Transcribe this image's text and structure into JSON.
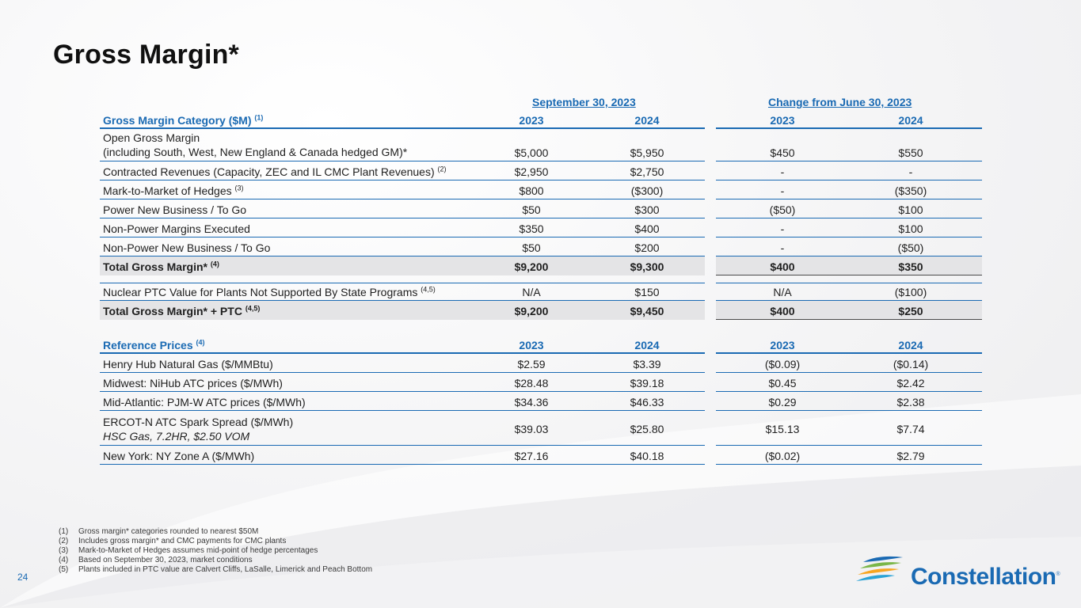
{
  "page": {
    "title": "Gross Margin*",
    "page_number": "24"
  },
  "group_headers": {
    "left": "September 30, 2023",
    "right": "Change from June 30, 2023"
  },
  "margin_table": {
    "header": {
      "label": "Gross Margin Category ($M)",
      "sup": "(1)",
      "c1": "2023",
      "c2": "2024",
      "c3": "2023",
      "c4": "2024"
    },
    "rows": [
      {
        "line1": "Open Gross Margin",
        "line2": "(including South, West, New England & Canada hedged GM)*",
        "c1": "$5,000",
        "c2": "$5,950",
        "c3": "$450",
        "c4": "$550"
      },
      {
        "label": "Contracted Revenues (Capacity, ZEC and IL CMC Plant Revenues)",
        "sup": "(2)",
        "c1": "$2,950",
        "c2": "$2,750",
        "c3": "-",
        "c4": "-"
      },
      {
        "label": "Mark-to-Market of Hedges",
        "sup": "(3)",
        "c1": "$800",
        "c2": "($300)",
        "c3": "-",
        "c4": "($350)"
      },
      {
        "label": "Power New Business / To Go",
        "c1": "$50",
        "c2": "$300",
        "c3": "($50)",
        "c4": "$100"
      },
      {
        "label": "Non-Power Margins Executed",
        "c1": "$350",
        "c2": "$400",
        "c3": "-",
        "c4": "$100"
      },
      {
        "label": "Non-Power New Business / To Go",
        "c1": "$50",
        "c2": "$200",
        "c3": "-",
        "c4": "($50)"
      }
    ],
    "total": {
      "label": "Total Gross Margin*",
      "sup": "(4)",
      "c1": "$9,200",
      "c2": "$9,300",
      "c3": "$400",
      "c4": "$350"
    },
    "ptc": {
      "label": "Nuclear PTC Value for Plants Not Supported By State Programs",
      "sup": "(4,5)",
      "c1": "N/A",
      "c2": "$150",
      "c3": "N/A",
      "c4": "($100)"
    },
    "total_ptc": {
      "label": "Total Gross Margin* + PTC",
      "sup": "(4,5)",
      "c1": "$9,200",
      "c2": "$9,450",
      "c3": "$400",
      "c4": "$250"
    }
  },
  "reference_table": {
    "header": {
      "label": "Reference Prices",
      "sup": "(4)",
      "c1": "2023",
      "c2": "2024",
      "c3": "2023",
      "c4": "2024"
    },
    "rows": [
      {
        "label": "Henry Hub Natural Gas ($/MMBtu)",
        "c1": "$2.59",
        "c2": "$3.39",
        "c3": "($0.09)",
        "c4": "($0.14)"
      },
      {
        "label": "Midwest: NiHub ATC prices ($/MWh)",
        "c1": "$28.48",
        "c2": "$39.18",
        "c3": "$0.45",
        "c4": "$2.42"
      },
      {
        "label": "Mid-Atlantic: PJM-W ATC prices ($/MWh)",
        "c1": "$34.36",
        "c2": "$46.33",
        "c3": "$0.29",
        "c4": "$2.38"
      },
      {
        "line1": "ERCOT-N ATC Spark Spread ($/MWh)",
        "line2": "HSC Gas, 7.2HR, $2.50 VOM",
        "c1": "$39.03",
        "c2": "$25.80",
        "c3": "$15.13",
        "c4": "$7.74"
      },
      {
        "label": "New York: NY Zone A ($/MWh)",
        "c1": "$27.16",
        "c2": "$40.18",
        "c3": "($0.02)",
        "c4": "$2.79"
      }
    ]
  },
  "footnotes": [
    {
      "n": "(1)",
      "text": "Gross margin* categories rounded to nearest $50M"
    },
    {
      "n": "(2)",
      "text": "Includes gross margin* and CMC payments for CMC plants"
    },
    {
      "n": "(3)",
      "text": "Mark-to-Market of Hedges assumes mid-point of hedge percentages"
    },
    {
      "n": "(4)",
      "text": "Based on September 30, 2023, market conditions"
    },
    {
      "n": "(5)",
      "text": "Plants included in PTC value are Calvert Cliffs, LaSalle, Limerick and Peach Bottom"
    }
  ],
  "logo": {
    "text": "Constellation",
    "mark": "®",
    "icon": "constellation-swoosh-logo-icon"
  },
  "colors": {
    "accent": "#1a6ab3",
    "total_bg": "#e4e4e6",
    "title": "#101010"
  }
}
